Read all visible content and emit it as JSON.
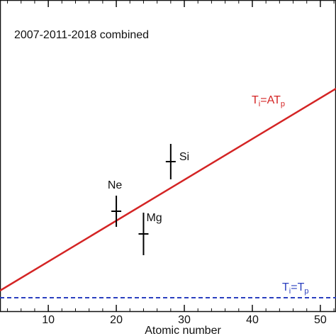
{
  "chart_data": {
    "type": "scatter",
    "annotation": "2007-2011-2018 combined",
    "xlabel": "Atomic number",
    "labels": [
      "Ne",
      "Mg",
      "Si"
    ],
    "x": [
      20,
      24,
      28
    ],
    "values": [
      7.1,
      5.5,
      10.6
    ],
    "errors": [
      1.1,
      1.5,
      1.25
    ],
    "color": "#000000",
    "xlim": [
      2.9,
      52.3
    ],
    "xticks": [
      10,
      20,
      30,
      40,
      50
    ],
    "ylim": [
      0,
      22
    ],
    "lines": [
      {
        "label_parts": [
          "T",
          "i",
          "=AT",
          "p"
        ],
        "color": "#d42424",
        "dashed": false,
        "x": [
          2.9,
          52.3
        ],
        "values": [
          1.5,
          15.75
        ]
      },
      {
        "label_parts": [
          "T",
          "i",
          "=T",
          "p"
        ],
        "color": "#2a3fbf",
        "dashed": true,
        "x": [
          2.9,
          52.3
        ],
        "values": [
          1,
          1
        ]
      }
    ]
  }
}
